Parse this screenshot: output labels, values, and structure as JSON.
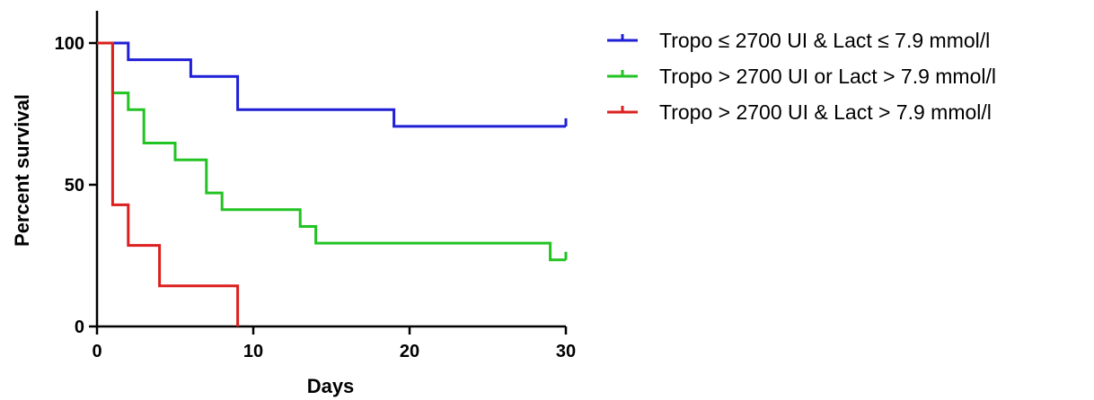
{
  "chart_data": {
    "type": "line",
    "subtype": "kaplan-meier step survival curve",
    "title": "",
    "xlabel": "Days",
    "ylabel": "Percent survival",
    "xlim": [
      0,
      30
    ],
    "ylim": [
      0,
      100
    ],
    "xticks": [
      0,
      10,
      20,
      30
    ],
    "xtick_labels": [
      "0",
      "10",
      "20",
      "30"
    ],
    "yticks": [
      0,
      50,
      100
    ],
    "ytick_labels": [
      "0",
      "50",
      "100"
    ],
    "grid": false,
    "legend_position": "right",
    "series": [
      {
        "name": "Tropo ≤ 2700 UI & Lact ≤ 7.9 mmol/l",
        "color": "#1f1fd6",
        "steps": [
          [
            0,
            100
          ],
          [
            2,
            94.1
          ],
          [
            6,
            88.2
          ],
          [
            9,
            76.5
          ],
          [
            19,
            70.6
          ],
          [
            30,
            70.6
          ]
        ],
        "censored": [
          [
            30,
            70.6
          ]
        ]
      },
      {
        "name": "Tropo > 2700 UI or Lact > 7.9 mmol/l",
        "color": "#22c322",
        "steps": [
          [
            0,
            100
          ],
          [
            1,
            82.4
          ],
          [
            2,
            76.5
          ],
          [
            3,
            64.7
          ],
          [
            5,
            58.8
          ],
          [
            7,
            47.1
          ],
          [
            8,
            41.2
          ],
          [
            13,
            35.3
          ],
          [
            14,
            29.4
          ],
          [
            29,
            23.5
          ],
          [
            30,
            23.5
          ]
        ],
        "censored": [
          [
            30,
            23.5
          ]
        ]
      },
      {
        "name": "Tropo > 2700 UI & Lact  > 7.9 mmol/l",
        "color": "#dc1f1f",
        "steps": [
          [
            0,
            100
          ],
          [
            1,
            42.9
          ],
          [
            2,
            28.6
          ],
          [
            4,
            14.3
          ],
          [
            9,
            0
          ]
        ],
        "censored": []
      }
    ]
  }
}
